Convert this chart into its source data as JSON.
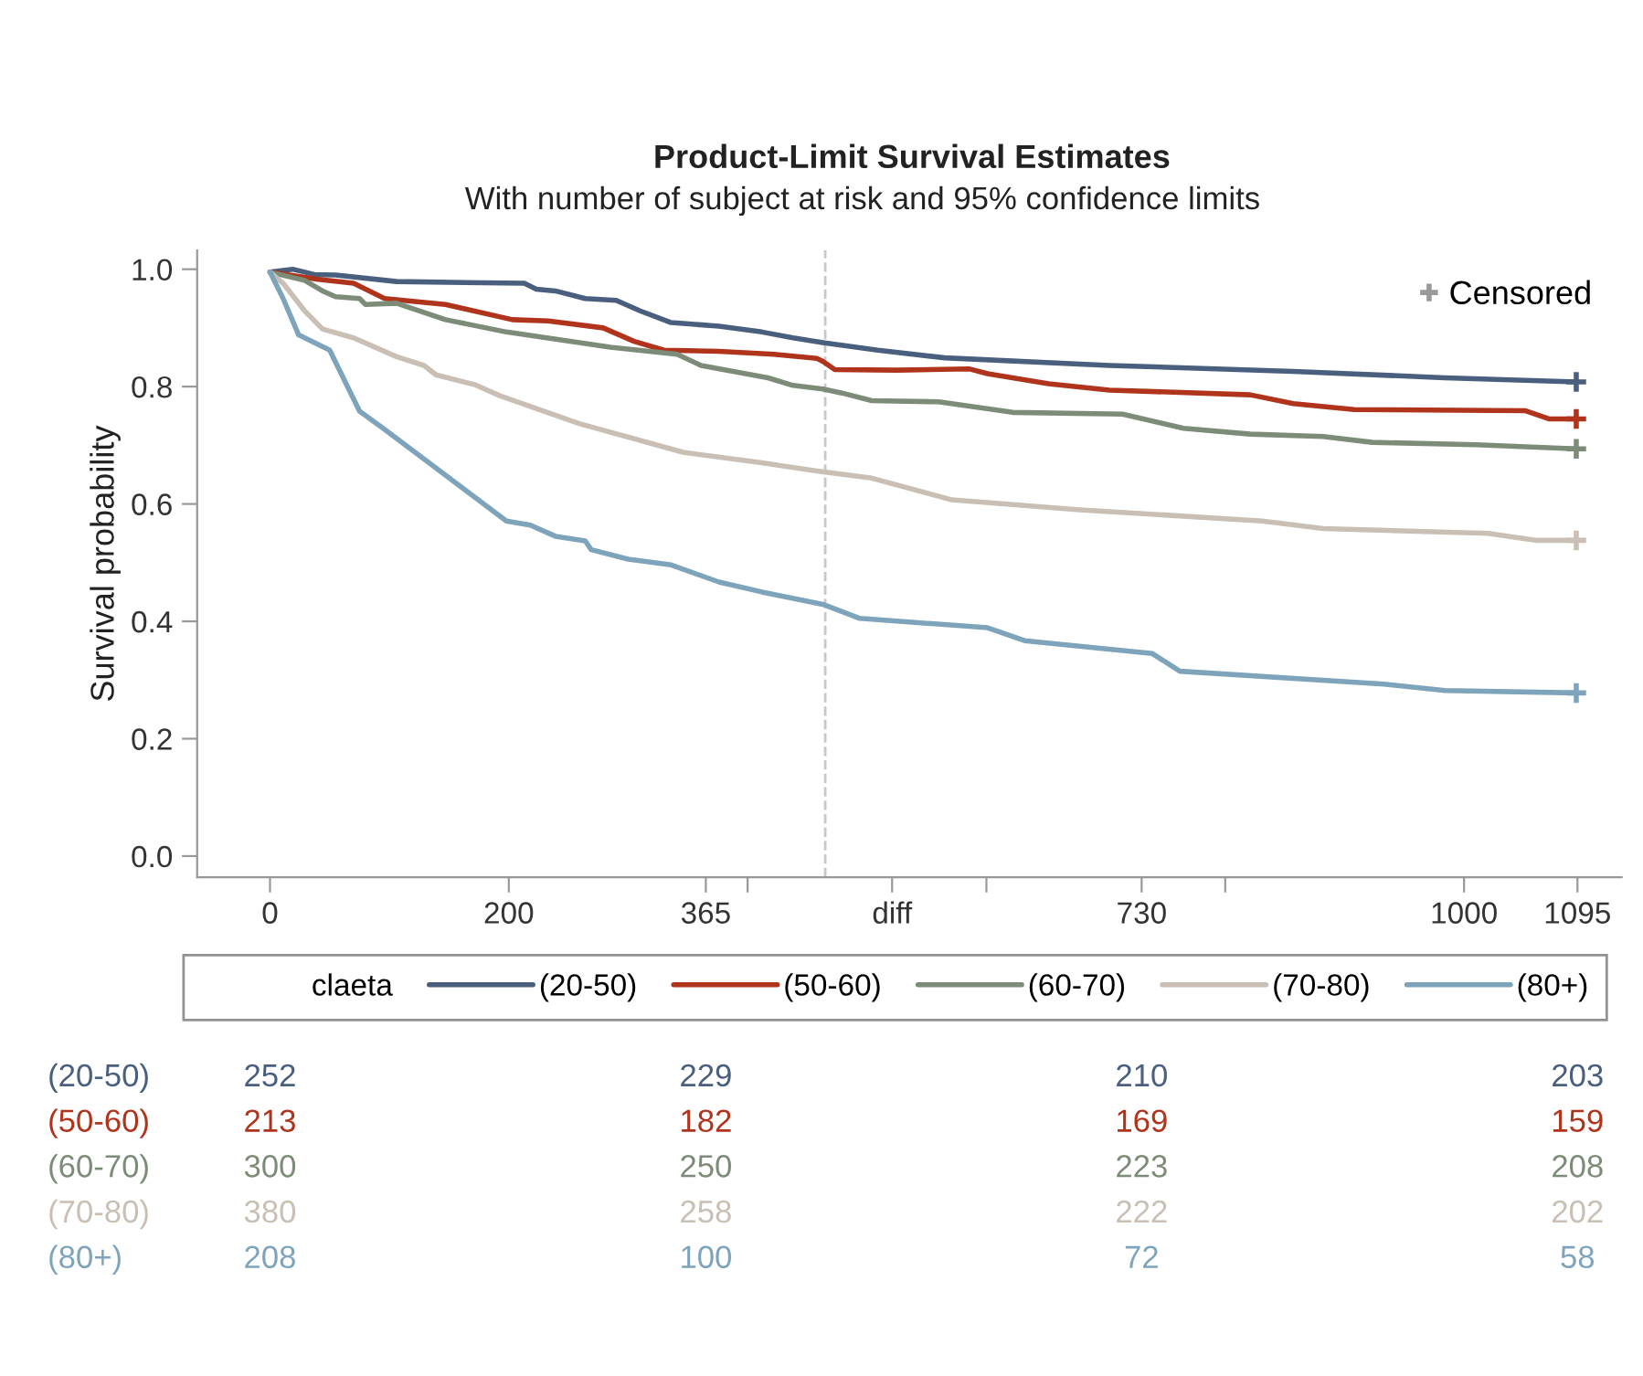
{
  "chart_data": [
    {
      "type": "line",
      "title": "Product-Limit Survival Estimates",
      "subtitle": "With number of subject at risk and 95% confidence limits",
      "ylabel": "Survival probability",
      "legend_title": "claeta",
      "legend": "bottom",
      "grid": false,
      "line_style": "solid",
      "xlim": [
        -61,
        1132
      ],
      "ylim": [
        -0.036,
        1.032
      ],
      "xticks": [
        0,
        200,
        365,
        {
          "value": 400,
          "label": null
        },
        {
          "value": 521,
          "label": "diff"
        },
        {
          "value": 600,
          "label": null
        },
        730,
        {
          "value": 800,
          "label": null
        },
        1000,
        1095
      ],
      "yticks": [
        {
          "value": 0,
          "label": "0.0"
        },
        {
          "value": 0.2,
          "label": "0.2"
        },
        {
          "value": 0.4,
          "label": "0.4"
        },
        {
          "value": 0.6,
          "label": "0.6"
        },
        {
          "value": 0.8,
          "label": "0.8"
        },
        {
          "value": 1,
          "label": "1.0"
        }
      ],
      "ref_lines": [
        {
          "axis": "x",
          "value": 465,
          "color": "#c8c8c8",
          "line_style": "dashed"
        }
      ],
      "series": [
        {
          "name": "(20-50)",
          "color": "#4a5f7e",
          "x": [
            0,
            19,
            37,
            55,
            106,
            213,
            223,
            239,
            264,
            290,
            310,
            336,
            376,
            412,
            438,
            463,
            509,
            565,
            703,
            857,
            984,
            1094
          ],
          "values": [
            0.995,
            1.0,
            0.991,
            0.99,
            0.979,
            0.976,
            0.966,
            0.963,
            0.95,
            0.947,
            0.929,
            0.909,
            0.903,
            0.893,
            0.883,
            0.875,
            0.862,
            0.849,
            0.836,
            0.826,
            0.815,
            0.808
          ]
        },
        {
          "name": "(50-60)",
          "color": "#b0341c",
          "x": [
            0,
            39,
            70,
            96,
            147,
            203,
            233,
            279,
            305,
            330,
            376,
            422,
            458,
            463,
            473,
            525,
            586,
            601,
            652,
            703,
            821,
            857,
            908,
            1051,
            1071,
            1094
          ],
          "values": [
            0.995,
            0.983,
            0.976,
            0.95,
            0.94,
            0.914,
            0.912,
            0.9,
            0.877,
            0.862,
            0.86,
            0.855,
            0.848,
            0.843,
            0.829,
            0.828,
            0.83,
            0.822,
            0.805,
            0.794,
            0.786,
            0.771,
            0.761,
            0.759,
            0.745,
            0.745
          ]
        },
        {
          "name": "(60-70)",
          "color": "#7d8c78",
          "x": [
            0,
            29,
            44,
            55,
            75,
            80,
            106,
            147,
            198,
            285,
            341,
            361,
            417,
            438,
            463,
            479,
            504,
            560,
            622,
            714,
            765,
            821,
            882,
            923,
            1010,
            1094
          ],
          "values": [
            0.995,
            0.981,
            0.963,
            0.953,
            0.95,
            0.94,
            0.942,
            0.914,
            0.893,
            0.867,
            0.855,
            0.836,
            0.815,
            0.802,
            0.796,
            0.789,
            0.776,
            0.774,
            0.756,
            0.753,
            0.729,
            0.719,
            0.715,
            0.705,
            0.701,
            0.694
          ]
        },
        {
          "name": "(70-80)",
          "color": "#c9bfb4",
          "x": [
            0,
            11,
            29,
            44,
            70,
            106,
            129,
            139,
            172,
            193,
            259,
            346,
            412,
            458,
            504,
            571,
            678,
            831,
            882,
            1020,
            1061,
            1094
          ],
          "values": [
            0.995,
            0.976,
            0.929,
            0.898,
            0.883,
            0.851,
            0.836,
            0.82,
            0.803,
            0.784,
            0.737,
            0.688,
            0.67,
            0.656,
            0.644,
            0.607,
            0.59,
            0.571,
            0.558,
            0.55,
            0.538,
            0.538
          ]
        },
        {
          "name": "(80+)",
          "color": "#7ea4bb",
          "x": [
            0,
            11,
            24,
            50,
            75,
            96,
            198,
            218,
            239,
            264,
            269,
            300,
            336,
            376,
            412,
            463,
            494,
            601,
            632,
            739,
            762,
            933,
            984,
            1094
          ],
          "values": [
            0.995,
            0.95,
            0.888,
            0.862,
            0.758,
            0.727,
            0.571,
            0.564,
            0.545,
            0.537,
            0.522,
            0.506,
            0.496,
            0.467,
            0.45,
            0.429,
            0.405,
            0.389,
            0.367,
            0.345,
            0.315,
            0.293,
            0.282,
            0.278
          ]
        },
        {
          "name": "Censored",
          "type": "scatter",
          "marker": "cross",
          "color": "#999999",
          "colors": [
            "#4a5f7e",
            "#b0341c",
            "#7d8c78",
            "#c9bfb4",
            "#7ea4bb"
          ],
          "x": [
            1094,
            1094,
            1094,
            1094,
            1094
          ],
          "values": [
            0.808,
            0.745,
            0.694,
            0.538,
            0.278
          ]
        }
      ]
    },
    {
      "type": "heatmap",
      "data_labels": true,
      "categories": [
        null,
        null,
        null,
        null
      ],
      "y_categories": [
        "(20-50)",
        "(50-60)",
        "(60-70)",
        "(70-80)",
        "(80+)"
      ],
      "colors": [
        "#4a5f7e",
        "#b0341c",
        "#7d8c78",
        "#c9bfb4",
        "#7ea4bb"
      ],
      "cells": [
        [
          252,
          229,
          210,
          203
        ],
        [
          213,
          182,
          169,
          159
        ],
        [
          300,
          250,
          223,
          208
        ],
        [
          380,
          258,
          222,
          202
        ],
        [
          208,
          100,
          72,
          58
        ]
      ]
    }
  ]
}
